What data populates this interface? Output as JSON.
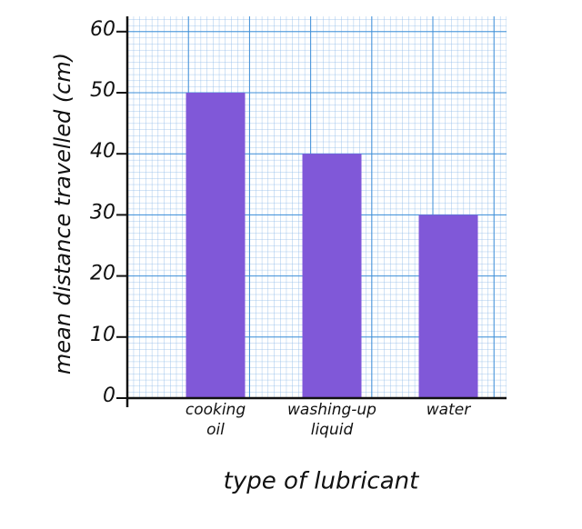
{
  "chart_data": {
    "type": "bar",
    "x_label": "type of lubricant",
    "y_label": "mean distance travelled (cm)",
    "categories": [
      "cooking oil",
      "washing-up liquid",
      "water"
    ],
    "values": [
      50,
      40,
      30
    ],
    "color": "#8058d8",
    "ylim": [
      0,
      62.5
    ],
    "yticks": [
      0,
      10,
      20,
      30,
      40,
      50,
      60
    ],
    "grid": true
  }
}
